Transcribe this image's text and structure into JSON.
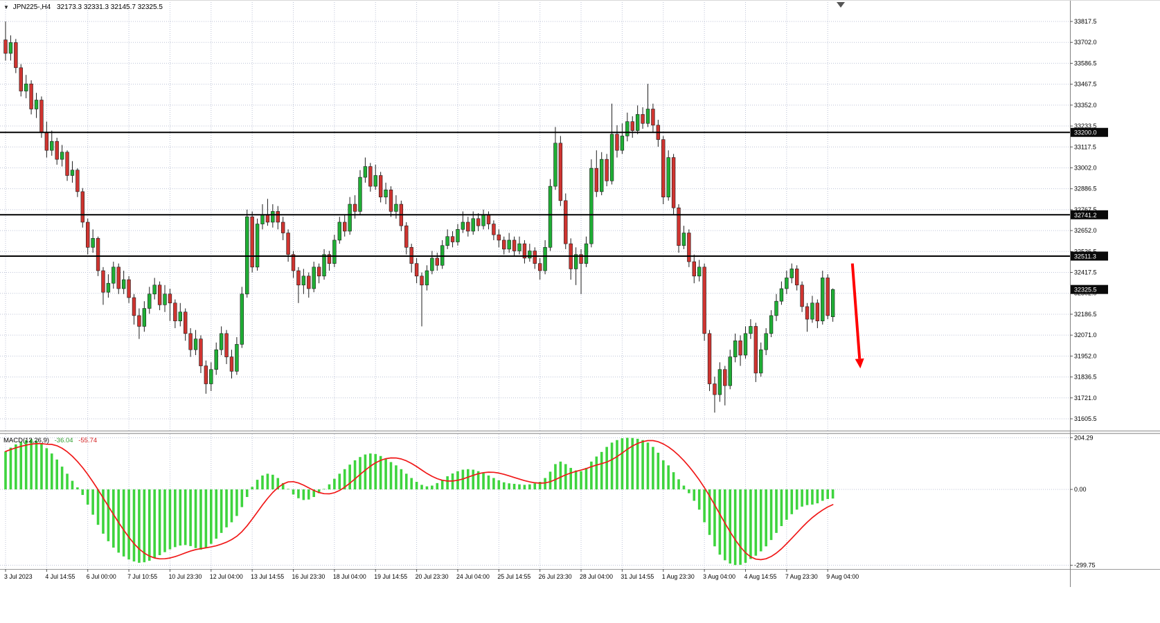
{
  "header": {
    "symbol_timeframe": "JPN225-,H4",
    "ohlc": "32173.3 32331.3 32145.7 32325.5"
  },
  "macd_panel": {
    "name": "MACD(12,26,9)",
    "main_value": "-36.04",
    "signal_value": "-55.74"
  },
  "colors": {
    "bull": "#1fae35",
    "bear": "#cf3430",
    "candle_border": "#1c1c1c",
    "grid": "#bcc2d6",
    "hline": "#000000",
    "macd_hist": "#3ed43e",
    "macd_signal": "#f01818",
    "badge_bg": "#0a0a0a",
    "badge_fg": "#ffffff",
    "axis_text": "#000000"
  },
  "chart_data": [
    {
      "type": "candlestick",
      "symbol": "JPN225-",
      "timeframe": "H4",
      "bars_per_x_label": 8,
      "x_labels": [
        "3 Jul 2023",
        "4 Jul 14:55",
        "6 Jul 00:00",
        "7 Jul 10:55",
        "10 Jul 23:30",
        "12 Jul 04:00",
        "13 Jul 14:55",
        "16 Jul 23:30",
        "18 Jul 04:00",
        "19 Jul 14:55",
        "20 Jul 23:30",
        "24 Jul 04:00",
        "25 Jul 14:55",
        "26 Jul 23:30",
        "28 Jul 04:00",
        "31 Jul 14:55",
        "1 Aug 23:30",
        "3 Aug 04:00",
        "4 Aug 14:55",
        "7 Aug 23:30",
        "9 Aug 04:00"
      ],
      "price_ticks": [
        33817.5,
        33702.0,
        33586.5,
        33467.5,
        33352.0,
        33233.5,
        33117.5,
        33002.0,
        32886.5,
        32767.5,
        32652.0,
        32536.5,
        32417.5,
        32302.0,
        32186.5,
        32071.0,
        31952.0,
        31836.5,
        31721.0,
        31605.5
      ],
      "horizontal_lines": [
        33200.0,
        32741.2,
        32511.3
      ],
      "current_price": 32325.5,
      "candles": [
        [
          33715,
          33817,
          33600,
          33640
        ],
        [
          33640,
          33740,
          33600,
          33700
        ],
        [
          33700,
          33720,
          33530,
          33560
        ],
        [
          33560,
          33580,
          33400,
          33430
        ],
        [
          33430,
          33520,
          33390,
          33470
        ],
        [
          33470,
          33490,
          33300,
          33330
        ],
        [
          33330,
          33420,
          33280,
          33380
        ],
        [
          33380,
          33400,
          33170,
          33200
        ],
        [
          33200,
          33260,
          33060,
          33100
        ],
        [
          33100,
          33210,
          33070,
          33150
        ],
        [
          33150,
          33170,
          33020,
          33050
        ],
        [
          33050,
          33130,
          33010,
          33090
        ],
        [
          33090,
          33100,
          32930,
          32960
        ],
        [
          32960,
          33040,
          32920,
          32990
        ],
        [
          32990,
          33000,
          32840,
          32870
        ],
        [
          32870,
          32890,
          32670,
          32700
        ],
        [
          32700,
          32720,
          32520,
          32560
        ],
        [
          32560,
          32660,
          32530,
          32610
        ],
        [
          32610,
          32620,
          32400,
          32430
        ],
        [
          32430,
          32450,
          32240,
          32310
        ],
        [
          32310,
          32410,
          32280,
          32360
        ],
        [
          32360,
          32480,
          32330,
          32450
        ],
        [
          32450,
          32470,
          32300,
          32330
        ],
        [
          32330,
          32430,
          32300,
          32380
        ],
        [
          32380,
          32400,
          32250,
          32280
        ],
        [
          32280,
          32300,
          32130,
          32180
        ],
        [
          32180,
          32220,
          32050,
          32120
        ],
        [
          32120,
          32260,
          32090,
          32220
        ],
        [
          32220,
          32340,
          32190,
          32300
        ],
        [
          32300,
          32390,
          32270,
          32350
        ],
        [
          32350,
          32370,
          32210,
          32240
        ],
        [
          32240,
          32350,
          32200,
          32300
        ],
        [
          32300,
          32330,
          32150,
          32250
        ],
        [
          32250,
          32270,
          32110,
          32150
        ],
        [
          32150,
          32250,
          32120,
          32200
        ],
        [
          32200,
          32220,
          32040,
          32080
        ],
        [
          32080,
          32110,
          31950,
          31990
        ],
        [
          31990,
          32100,
          31960,
          32050
        ],
        [
          32050,
          32070,
          31860,
          31900
        ],
        [
          31900,
          31930,
          31745,
          31800
        ],
        [
          31800,
          31920,
          31760,
          31880
        ],
        [
          31880,
          32030,
          31850,
          31990
        ],
        [
          31990,
          32120,
          31960,
          32080
        ],
        [
          32080,
          32100,
          31910,
          31950
        ],
        [
          31950,
          31990,
          31830,
          31870
        ],
        [
          31870,
          32060,
          31850,
          32020
        ],
        [
          32020,
          32340,
          32000,
          32300
        ],
        [
          32300,
          32770,
          32280,
          32730
        ],
        [
          32730,
          32760,
          32420,
          32450
        ],
        [
          32450,
          32720,
          32430,
          32690
        ],
        [
          32690,
          32800,
          32660,
          32740
        ],
        [
          32740,
          32830,
          32680,
          32700
        ],
        [
          32700,
          32800,
          32670,
          32760
        ],
        [
          32760,
          32790,
          32660,
          32700
        ],
        [
          32700,
          32730,
          32600,
          32640
        ],
        [
          32640,
          32660,
          32480,
          32520
        ],
        [
          32520,
          32540,
          32390,
          32430
        ],
        [
          32430,
          32450,
          32250,
          32350
        ],
        [
          32350,
          32440,
          32300,
          32400
        ],
        [
          32400,
          32420,
          32280,
          32330
        ],
        [
          32330,
          32480,
          32310,
          32450
        ],
        [
          32450,
          32470,
          32360,
          32400
        ],
        [
          32400,
          32550,
          32380,
          32520
        ],
        [
          32520,
          32540,
          32430,
          32470
        ],
        [
          32470,
          32630,
          32450,
          32600
        ],
        [
          32600,
          32730,
          32580,
          32700
        ],
        [
          32700,
          32740,
          32620,
          32650
        ],
        [
          32650,
          32840,
          32630,
          32800
        ],
        [
          32800,
          32850,
          32720,
          32760
        ],
        [
          32760,
          32990,
          32740,
          32950
        ],
        [
          32950,
          33060,
          32920,
          33010
        ],
        [
          33010,
          33030,
          32870,
          32900
        ],
        [
          32900,
          33020,
          32880,
          32960
        ],
        [
          32960,
          32980,
          32810,
          32840
        ],
        [
          32840,
          32920,
          32800,
          32880
        ],
        [
          32880,
          32900,
          32730,
          32760
        ],
        [
          32760,
          32850,
          32720,
          32800
        ],
        [
          32800,
          32820,
          32650,
          32680
        ],
        [
          32680,
          32700,
          32520,
          32560
        ],
        [
          32560,
          32580,
          32420,
          32470
        ],
        [
          32470,
          32500,
          32360,
          32400
        ],
        [
          32400,
          32420,
          32120,
          32350
        ],
        [
          32350,
          32460,
          32320,
          32430
        ],
        [
          32430,
          32540,
          32410,
          32500
        ],
        [
          32500,
          32530,
          32430,
          32460
        ],
        [
          32460,
          32600,
          32440,
          32570
        ],
        [
          32570,
          32660,
          32550,
          32620
        ],
        [
          32620,
          32650,
          32560,
          32590
        ],
        [
          32590,
          32690,
          32570,
          32660
        ],
        [
          32660,
          32760,
          32640,
          32700
        ],
        [
          32700,
          32730,
          32620,
          32650
        ],
        [
          32650,
          32760,
          32630,
          32720
        ],
        [
          32720,
          32750,
          32650,
          32680
        ],
        [
          32680,
          32770,
          32660,
          32740
        ],
        [
          32740,
          32760,
          32660,
          32690
        ],
        [
          32690,
          32710,
          32600,
          32630
        ],
        [
          32630,
          32660,
          32560,
          32600
        ],
        [
          32600,
          32620,
          32520,
          32550
        ],
        [
          32550,
          32640,
          32530,
          32600
        ],
        [
          32600,
          32620,
          32510,
          32540
        ],
        [
          32540,
          32620,
          32520,
          32580
        ],
        [
          32580,
          32600,
          32470,
          32500
        ],
        [
          32500,
          32580,
          32480,
          32540
        ],
        [
          32540,
          32560,
          32440,
          32470
        ],
        [
          32470,
          32500,
          32380,
          32430
        ],
        [
          32430,
          32600,
          32410,
          32560
        ],
        [
          32560,
          32940,
          32540,
          32900
        ],
        [
          32900,
          33230,
          32880,
          33140
        ],
        [
          33140,
          33180,
          32790,
          32820
        ],
        [
          32820,
          32860,
          32550,
          32580
        ],
        [
          32580,
          32610,
          32380,
          32440
        ],
        [
          32440,
          32560,
          32350,
          32520
        ],
        [
          32520,
          32550,
          32300,
          32470
        ],
        [
          32470,
          32620,
          32450,
          32580
        ],
        [
          32580,
          33050,
          32560,
          33000
        ],
        [
          33000,
          33100,
          32840,
          32870
        ],
        [
          32870,
          33090,
          32850,
          33050
        ],
        [
          33050,
          33080,
          32900,
          32930
        ],
        [
          32930,
          33360,
          32910,
          33190
        ],
        [
          33190,
          33240,
          33060,
          33100
        ],
        [
          33100,
          33250,
          33080,
          33180
        ],
        [
          33180,
          33310,
          33150,
          33260
        ],
        [
          33260,
          33290,
          33170,
          33210
        ],
        [
          33210,
          33350,
          33190,
          33300
        ],
        [
          33300,
          33340,
          33220,
          33250
        ],
        [
          33250,
          33470,
          33230,
          33330
        ],
        [
          33330,
          33360,
          33200,
          33240
        ],
        [
          33240,
          33270,
          33120,
          33160
        ],
        [
          33160,
          33180,
          32800,
          32840
        ],
        [
          32840,
          33100,
          32820,
          33060
        ],
        [
          33060,
          33080,
          32740,
          32780
        ],
        [
          32780,
          32800,
          32530,
          32570
        ],
        [
          32570,
          32680,
          32550,
          32640
        ],
        [
          32640,
          32660,
          32450,
          32480
        ],
        [
          32480,
          32520,
          32360,
          32400
        ],
        [
          32400,
          32490,
          32370,
          32450
        ],
        [
          32450,
          32470,
          32040,
          32080
        ],
        [
          32080,
          32100,
          31760,
          31800
        ],
        [
          31800,
          31840,
          31640,
          31740
        ],
        [
          31740,
          31920,
          31700,
          31880
        ],
        [
          31880,
          31900,
          31680,
          31790
        ],
        [
          31790,
          31990,
          31770,
          31950
        ],
        [
          31950,
          32080,
          31920,
          32040
        ],
        [
          32040,
          32070,
          31900,
          31960
        ],
        [
          31960,
          32120,
          31940,
          32080
        ],
        [
          32080,
          32160,
          32050,
          32120
        ],
        [
          32120,
          32140,
          31810,
          31860
        ],
        [
          31860,
          32030,
          31840,
          31990
        ],
        [
          31990,
          32110,
          31960,
          32080
        ],
        [
          32080,
          32210,
          32060,
          32180
        ],
        [
          32180,
          32300,
          32150,
          32260
        ],
        [
          32260,
          32370,
          32240,
          32330
        ],
        [
          32330,
          32430,
          32300,
          32390
        ],
        [
          32390,
          32470,
          32360,
          32440
        ],
        [
          32440,
          32460,
          32320,
          32350
        ],
        [
          32350,
          32370,
          32200,
          32230
        ],
        [
          32230,
          32250,
          32090,
          32160
        ],
        [
          32160,
          32290,
          32140,
          32250
        ],
        [
          32250,
          32270,
          32110,
          32150
        ],
        [
          32150,
          32430,
          32130,
          32390
        ],
        [
          32390,
          32410,
          32160,
          32180
        ],
        [
          32173.3,
          32331.3,
          32145.7,
          32325.5
        ]
      ]
    },
    {
      "type": "bar",
      "name": "MACD(12,26,9)",
      "signal_period": 9,
      "axis_ticks": [
        204.29,
        0,
        -299.75
      ],
      "last_main": -36.04,
      "last_signal": -55.74,
      "values": [
        150,
        165,
        178,
        188,
        195,
        198,
        192,
        180,
        163,
        142,
        118,
        90,
        62,
        34,
        8,
        -22,
        -60,
        -100,
        -140,
        -175,
        -205,
        -230,
        -250,
        -265,
        -277,
        -285,
        -290,
        -288,
        -282,
        -272,
        -260,
        -248,
        -237,
        -228,
        -222,
        -220,
        -224,
        -232,
        -238,
        -230,
        -215,
        -195,
        -172,
        -150,
        -130,
        -105,
        -70,
        -30,
        10,
        38,
        55,
        62,
        58,
        45,
        25,
        2,
        -20,
        -35,
        -42,
        -40,
        -30,
        -15,
        2,
        20,
        42,
        62,
        80,
        98,
        115,
        128,
        138,
        142,
        140,
        132,
        120,
        108,
        95,
        80,
        62,
        45,
        30,
        18,
        12,
        15,
        25,
        38,
        52,
        63,
        72,
        78,
        80,
        78,
        72,
        64,
        55,
        45,
        36,
        28,
        24,
        22,
        20,
        18,
        20,
        24,
        30,
        45,
        70,
        100,
        110,
        100,
        85,
        75,
        72,
        85,
        110,
        130,
        148,
        168,
        185,
        195,
        202,
        204,
        203,
        200,
        195,
        185,
        168,
        145,
        115,
        95,
        68,
        40,
        15,
        -15,
        -45,
        -80,
        -130,
        -180,
        -225,
        -258,
        -280,
        -293,
        -299,
        -298,
        -290,
        -275,
        -262,
        -245,
        -225,
        -200,
        -172,
        -145,
        -120,
        -98,
        -80,
        -68,
        -62,
        -60,
        -55,
        -45,
        -38,
        -36.04
      ]
    }
  ],
  "annotations": [
    {
      "type": "arrow",
      "from_bar": 164.8,
      "from_price": 32470,
      "to_bar": 166.2,
      "to_price": 31940,
      "color": "#ff0000"
    }
  ]
}
